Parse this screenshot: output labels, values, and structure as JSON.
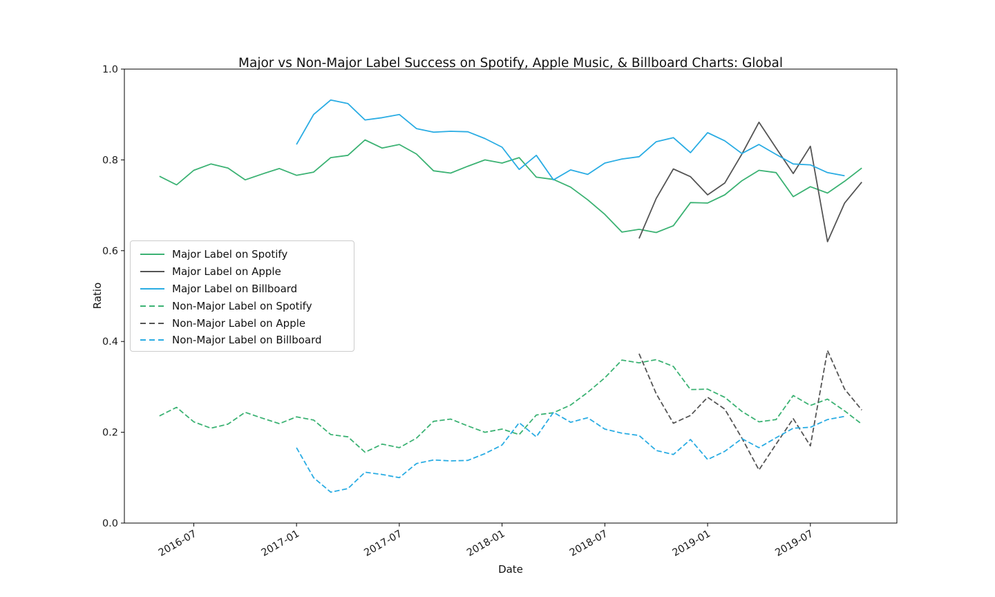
{
  "figure": {
    "background": "#ffffff",
    "axes_edge_color": "#000000",
    "tick_label_color": "#1a1a1a"
  },
  "chart_data": {
    "type": "line",
    "title": "Major vs Non-Major Label Success on Spotify, Apple Music, & Billboard Charts: Global",
    "xlabel": "Date",
    "ylabel": "Ratio",
    "ylim": [
      0.0,
      1.0
    ],
    "yticks": [
      "0.0",
      "0.2",
      "0.4",
      "0.6",
      "0.8",
      "1.0"
    ],
    "xticks": [
      "2016-07",
      "2017-01",
      "2017-07",
      "2018-01",
      "2018-07",
      "2019-01",
      "2019-07"
    ],
    "xtick_rotation_deg": 30,
    "grid": false,
    "legend_position": "center-left",
    "x_margin_months": 2.05,
    "series": [
      {
        "name": "Major Label on Spotify",
        "color": "#3bb273",
        "dash": false,
        "start": "2016-05",
        "values": [
          0.764,
          0.745,
          0.777,
          0.791,
          0.782,
          0.756,
          0.769,
          0.781,
          0.766,
          0.773,
          0.805,
          0.81,
          0.844,
          0.826,
          0.834,
          0.813,
          0.776,
          0.771,
          0.786,
          0.8,
          0.793,
          0.805,
          0.762,
          0.757,
          0.74,
          0.712,
          0.68,
          0.641,
          0.647,
          0.64,
          0.655,
          0.706,
          0.705,
          0.723,
          0.754,
          0.777,
          0.772,
          0.719,
          0.741,
          0.727,
          0.753,
          0.782
        ]
      },
      {
        "name": "Major Label on Apple",
        "color": "#545454",
        "dash": false,
        "start": "2018-09",
        "values": [
          0.627,
          0.715,
          0.78,
          0.763,
          0.723,
          0.749,
          0.813,
          0.883,
          0.826,
          0.77,
          0.83,
          0.62,
          0.705,
          0.751
        ]
      },
      {
        "name": "Major Label on Billboard",
        "color": "#29ace3",
        "dash": false,
        "start": "2017-01",
        "values": [
          0.834,
          0.9,
          0.932,
          0.924,
          0.888,
          0.893,
          0.9,
          0.869,
          0.861,
          0.863,
          0.862,
          0.847,
          0.828,
          0.779,
          0.81,
          0.756,
          0.778,
          0.768,
          0.793,
          0.802,
          0.807,
          0.84,
          0.849,
          0.816,
          0.86,
          0.842,
          0.814,
          0.834,
          0.812,
          0.791,
          0.789,
          0.772,
          0.765
        ]
      },
      {
        "name": "Non-Major Label on Spotify",
        "color": "#3bb273",
        "dash": true,
        "start": "2016-05",
        "values": [
          0.236,
          0.255,
          0.223,
          0.209,
          0.218,
          0.244,
          0.231,
          0.219,
          0.234,
          0.227,
          0.195,
          0.19,
          0.156,
          0.174,
          0.166,
          0.187,
          0.224,
          0.229,
          0.214,
          0.2,
          0.207,
          0.195,
          0.238,
          0.243,
          0.26,
          0.288,
          0.32,
          0.359,
          0.353,
          0.36,
          0.345,
          0.294,
          0.295,
          0.277,
          0.246,
          0.223,
          0.228,
          0.281,
          0.259,
          0.273,
          0.247,
          0.218
        ]
      },
      {
        "name": "Non-Major Label on Apple",
        "color": "#545454",
        "dash": true,
        "start": "2018-09",
        "values": [
          0.373,
          0.285,
          0.22,
          0.237,
          0.277,
          0.251,
          0.187,
          0.117,
          0.174,
          0.23,
          0.17,
          0.38,
          0.295,
          0.249
        ]
      },
      {
        "name": "Non-Major Label on Billboard",
        "color": "#29ace3",
        "dash": true,
        "start": "2017-01",
        "values": [
          0.166,
          0.1,
          0.068,
          0.076,
          0.112,
          0.107,
          0.1,
          0.131,
          0.139,
          0.137,
          0.138,
          0.153,
          0.172,
          0.221,
          0.19,
          0.244,
          0.222,
          0.232,
          0.207,
          0.198,
          0.193,
          0.16,
          0.151,
          0.184,
          0.14,
          0.158,
          0.186,
          0.166,
          0.188,
          0.209,
          0.211,
          0.228,
          0.235
        ]
      }
    ]
  }
}
